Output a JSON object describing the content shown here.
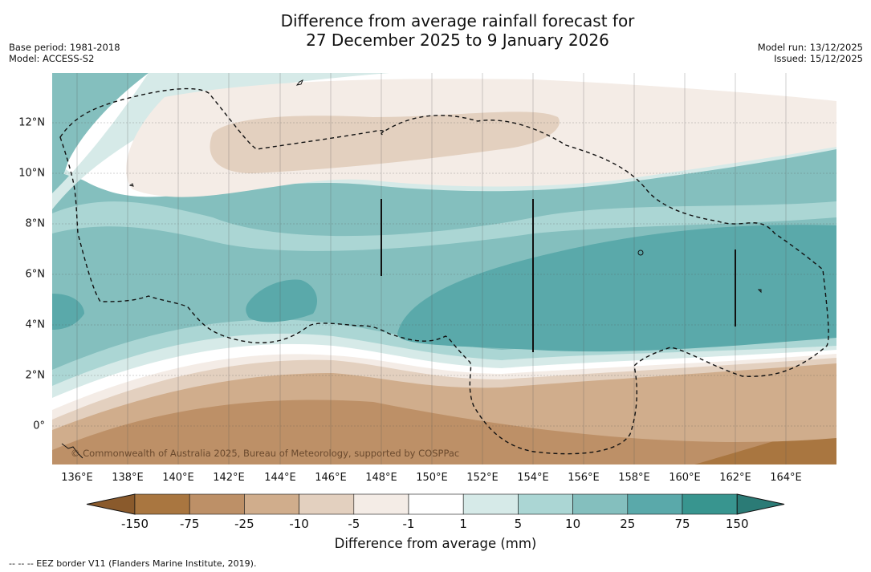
{
  "title": {
    "line1": "Difference from average rainfall forecast for",
    "line2": "27 December 2025 to 9 January 2026"
  },
  "meta_left": {
    "base_period": "Base period: 1981-2018",
    "model": "Model: ACCESS-S2"
  },
  "meta_right": {
    "model_run": "Model run: 13/12/2025",
    "issued": "Issued: 15/12/2025"
  },
  "map": {
    "credit": "© Commonwealth of Australia 2025, Bureau of Meteorology, supported by COSPPac",
    "longitude_labels": [
      "136°E",
      "138°E",
      "140°E",
      "142°E",
      "144°E",
      "146°E",
      "148°E",
      "150°E",
      "152°E",
      "154°E",
      "156°E",
      "158°E",
      "160°E",
      "162°E",
      "164°E"
    ],
    "latitude_labels": [
      "12°N",
      "10°N",
      "8°N",
      "6°N",
      "4°N",
      "2°N",
      "0°"
    ]
  },
  "colorbar": {
    "ticks": [
      "-150",
      "-75",
      "-25",
      "-10",
      "-5",
      "-1",
      "1",
      "5",
      "10",
      "25",
      "75",
      "150"
    ],
    "colors": [
      "#8a5a2c",
      "#a97640",
      "#bd9067",
      "#d0ad8c",
      "#e3d0bf",
      "#f4ece6",
      "#ffffff",
      "#d6eae8",
      "#abd6d4",
      "#84bfbe",
      "#5aa9aa",
      "#38958f",
      "#2b7b76"
    ],
    "title": "Difference from average (mm)"
  },
  "footnote": "--  --  -- EEZ border V11 (Flanders Marine Institute, 2019)."
}
